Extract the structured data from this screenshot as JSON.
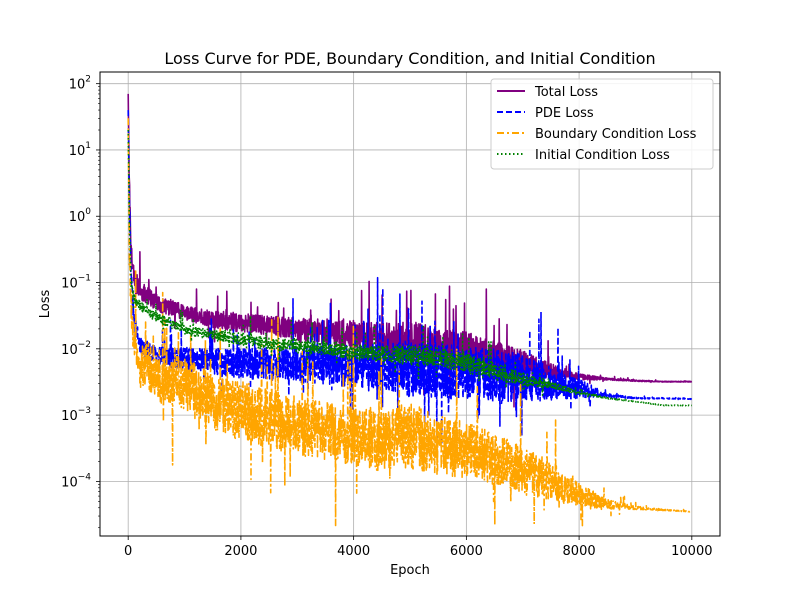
{
  "chart_data": {
    "type": "line",
    "title": "Loss Curve for PDE, Boundary Condition, and Initial Condition",
    "xlabel": "Epoch",
    "ylabel": "Loss",
    "xlim": [
      -500,
      10500
    ],
    "ylim": [
      1.5e-05,
      150
    ],
    "y_scale": "log",
    "grid": true,
    "legend_position": "top-right",
    "x_ticks": [
      0,
      2000,
      4000,
      6000,
      8000,
      10000
    ],
    "x_tick_labels": [
      "0",
      "2000",
      "4000",
      "6000",
      "8000",
      "10000"
    ],
    "y_ticks": [
      0.0001,
      0.001,
      0.01,
      0.1,
      1,
      10,
      100
    ],
    "y_tick_labels": [
      {
        "base": "10",
        "exp": "−4"
      },
      {
        "base": "10",
        "exp": "−3"
      },
      {
        "base": "10",
        "exp": "−2"
      },
      {
        "base": "10",
        "exp": "−1"
      },
      {
        "base": "10",
        "exp": "0"
      },
      {
        "base": "10",
        "exp": "1"
      },
      {
        "base": "10",
        "exp": "2"
      }
    ],
    "series": [
      {
        "name": "Total Loss",
        "color": "#800080",
        "dash": "solid",
        "x": [
          0,
          20,
          50,
          100,
          200,
          500,
          1000,
          1500,
          2000,
          2500,
          3000,
          3500,
          4000,
          4500,
          5000,
          5500,
          6000,
          6500,
          7000,
          7500,
          8000,
          8500,
          9000,
          9500,
          10000
        ],
        "y": [
          70,
          3,
          0.3,
          0.12,
          0.08,
          0.05,
          0.035,
          0.028,
          0.025,
          0.022,
          0.02,
          0.018,
          0.016,
          0.014,
          0.013,
          0.011,
          0.009,
          0.007,
          0.006,
          0.0045,
          0.0038,
          0.0035,
          0.0033,
          0.0032,
          0.0032
        ],
        "noise_amplitude": [
          0,
          0.2,
          0.3,
          0.3,
          0.3,
          0.25,
          0.25,
          0.25,
          0.3,
          0.3,
          0.35,
          0.4,
          0.45,
          0.5,
          0.6,
          0.6,
          0.6,
          0.55,
          0.4,
          0.25,
          0.1,
          0.03,
          0.02,
          0.01,
          0.01
        ]
      },
      {
        "name": "PDE Loss",
        "color": "#0000ff",
        "dash": "dashed",
        "x": [
          0,
          20,
          50,
          100,
          200,
          500,
          1000,
          1500,
          2000,
          2500,
          3000,
          3500,
          4000,
          4500,
          5000,
          5500,
          6000,
          6500,
          7000,
          7500,
          8000,
          8500,
          9000,
          9500,
          10000
        ],
        "y": [
          40,
          1.5,
          0.12,
          0.03,
          0.012,
          0.008,
          0.007,
          0.0065,
          0.006,
          0.006,
          0.0058,
          0.0056,
          0.0055,
          0.0053,
          0.005,
          0.0048,
          0.0045,
          0.004,
          0.0035,
          0.003,
          0.0025,
          0.002,
          0.0018,
          0.00178,
          0.00175
        ],
        "noise_amplitude": [
          0,
          0.3,
          0.35,
          0.3,
          0.25,
          0.3,
          0.35,
          0.4,
          0.45,
          0.5,
          0.55,
          0.6,
          0.65,
          0.75,
          0.85,
          0.85,
          0.85,
          0.8,
          0.75,
          0.5,
          0.3,
          0.05,
          0.02,
          0.01,
          0.01
        ]
      },
      {
        "name": "Boundary Condition Loss",
        "color": "#ffa500",
        "dash": "dashdot",
        "x": [
          0,
          20,
          50,
          100,
          200,
          500,
          1000,
          1500,
          2000,
          2500,
          3000,
          3500,
          4000,
          4500,
          5000,
          5500,
          6000,
          6500,
          7000,
          7500,
          8000,
          8500,
          9000,
          9500,
          10000
        ],
        "y": [
          30,
          0.3,
          0.05,
          0.012,
          0.006,
          0.004,
          0.003,
          0.0015,
          0.0012,
          0.0009,
          0.0007,
          0.0006,
          0.0005,
          0.0004,
          0.0005,
          0.00035,
          0.0003,
          0.00022,
          0.00015,
          0.0001,
          6e-05,
          4.5e-05,
          4e-05,
          3.7e-05,
          3.5e-05
        ],
        "noise_amplitude": [
          0,
          0.4,
          0.5,
          0.6,
          0.7,
          0.8,
          0.8,
          0.9,
          0.9,
          0.9,
          0.9,
          0.9,
          0.9,
          0.9,
          1.0,
          0.9,
          0.85,
          0.8,
          0.7,
          0.6,
          0.4,
          0.15,
          0.05,
          0.02,
          0.01
        ]
      },
      {
        "name": "Initial Condition Loss",
        "color": "#008000",
        "dash": "dotted",
        "x": [
          0,
          20,
          50,
          100,
          200,
          500,
          1000,
          1500,
          2000,
          2500,
          3000,
          3500,
          4000,
          4500,
          5000,
          5500,
          6000,
          6500,
          7000,
          7500,
          8000,
          8500,
          9000,
          9500,
          10000
        ],
        "y": [
          20,
          1,
          0.1,
          0.06,
          0.045,
          0.03,
          0.02,
          0.016,
          0.014,
          0.012,
          0.011,
          0.01,
          0.009,
          0.0085,
          0.008,
          0.0075,
          0.006,
          0.0045,
          0.0035,
          0.0028,
          0.0022,
          0.0018,
          0.0016,
          0.0014,
          0.0014
        ],
        "noise_amplitude": [
          0,
          0.15,
          0.15,
          0.15,
          0.15,
          0.15,
          0.15,
          0.15,
          0.2,
          0.2,
          0.2,
          0.2,
          0.25,
          0.25,
          0.3,
          0.3,
          0.3,
          0.25,
          0.2,
          0.12,
          0.05,
          0.02,
          0.01,
          0.01,
          0.01
        ]
      }
    ]
  }
}
